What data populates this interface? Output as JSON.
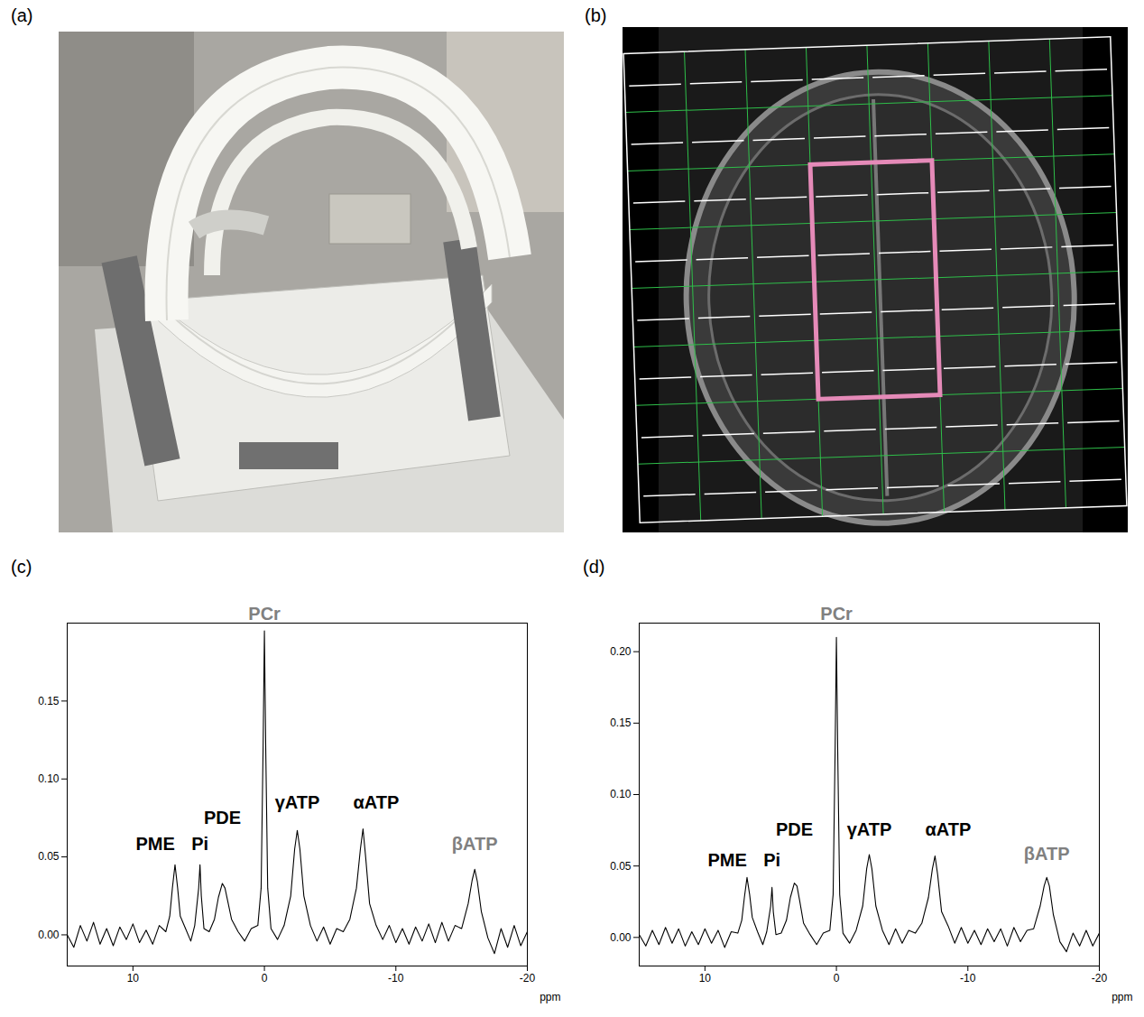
{
  "panels": [
    {
      "panel_label": "(a)",
      "type": "photo"
    },
    {
      "panel_label": "(b)",
      "type": "mrsi_grid",
      "grid": {
        "rows": 8,
        "cols": 8,
        "color": "#2fbf4a"
      },
      "highlight": {
        "first_row": 3,
        "last_row": 6,
        "first_col": 4,
        "last_col": 5,
        "color": "#e58ab8"
      }
    }
  ],
  "chart_data": [
    {
      "type": "line",
      "panel_label": "(c)",
      "x_label": "ppm",
      "color": "#000000",
      "xlim": [
        15,
        -20
      ],
      "xticks": [
        10,
        0,
        -10,
        -20
      ],
      "ylim": [
        -0.02,
        0.2
      ],
      "yticks": [
        {
          "value": 0,
          "label": "0.00"
        },
        {
          "value": 0.05,
          "label": "0.05"
        },
        {
          "value": 0.1,
          "label": "0.10"
        },
        {
          "value": 0.15,
          "label": "0.15"
        }
      ],
      "x": [
        15,
        14.5,
        14,
        13.5,
        13,
        12.5,
        12,
        11.5,
        11,
        10.5,
        10,
        9.5,
        9,
        8.5,
        8,
        7.5,
        7.2,
        7.0,
        6.8,
        6.6,
        6.4,
        6.0,
        5.6,
        5.3,
        5.0,
        4.9,
        4.8,
        4.6,
        4.2,
        3.8,
        3.5,
        3.2,
        3.0,
        2.8,
        2.5,
        2.0,
        1.5,
        1.0,
        0.5,
        0.25,
        0.1,
        0,
        -0.1,
        -0.25,
        -0.5,
        -1.0,
        -1.5,
        -2.0,
        -2.3,
        -2.5,
        -2.7,
        -3.0,
        -3.5,
        -4.0,
        -4.5,
        -5.0,
        -5.5,
        -6.0,
        -6.5,
        -7.0,
        -7.3,
        -7.5,
        -7.7,
        -8.0,
        -8.5,
        -9.0,
        -9.5,
        -10,
        -10.5,
        -11,
        -11.5,
        -12,
        -12.5,
        -13,
        -13.5,
        -14,
        -14.5,
        -15,
        -15.5,
        -15.8,
        -16,
        -16.2,
        -16.5,
        -17,
        -17.5,
        -18,
        -18.5,
        -19,
        -19.5,
        -20
      ],
      "values": [
        0.0,
        -0.008,
        0.006,
        -0.004,
        0.008,
        -0.006,
        0.004,
        -0.007,
        0.005,
        -0.003,
        0.007,
        -0.005,
        0.003,
        -0.006,
        0.006,
        0.002,
        0.012,
        0.03,
        0.045,
        0.03,
        0.012,
        0.004,
        -0.004,
        0.006,
        0.03,
        0.045,
        0.025,
        0.004,
        0.002,
        0.01,
        0.024,
        0.033,
        0.03,
        0.022,
        0.01,
        0.002,
        -0.004,
        0.004,
        0.006,
        0.03,
        0.12,
        0.195,
        0.12,
        0.03,
        0.004,
        -0.003,
        0.006,
        0.025,
        0.055,
        0.067,
        0.055,
        0.025,
        0.006,
        -0.004,
        0.005,
        -0.006,
        0.004,
        0.002,
        0.01,
        0.03,
        0.055,
        0.068,
        0.05,
        0.02,
        0.006,
        -0.003,
        0.006,
        -0.005,
        0.004,
        -0.006,
        0.005,
        -0.004,
        0.007,
        -0.005,
        0.008,
        -0.004,
        0.006,
        0.004,
        0.02,
        0.035,
        0.042,
        0.034,
        0.015,
        -0.002,
        -0.012,
        0.004,
        -0.008,
        0.006,
        -0.007,
        0.002
      ],
      "annotations": [
        {
          "text": "PME",
          "x": 8.3,
          "y": 0.058,
          "color": "#000000"
        },
        {
          "text": "Pi",
          "x": 4.9,
          "y": 0.058,
          "color": "#000000"
        },
        {
          "text": "PDE",
          "x": 3.2,
          "y": 0.075,
          "color": "#000000"
        },
        {
          "text": "PCr",
          "x": 0,
          "y": 0.206,
          "color": "#808080"
        },
        {
          "text": "γATP",
          "x": -2.5,
          "y": 0.085,
          "color": "#000000"
        },
        {
          "text": "αATP",
          "x": -8.5,
          "y": 0.085,
          "color": "#000000"
        },
        {
          "text": "βATP",
          "x": -16,
          "y": 0.058,
          "color": "#808080"
        }
      ]
    },
    {
      "type": "line",
      "panel_label": "(d)",
      "x_label": "ppm",
      "color": "#000000",
      "xlim": [
        15,
        -20
      ],
      "xticks": [
        10,
        0,
        -10,
        -20
      ],
      "ylim": [
        -0.02,
        0.22
      ],
      "yticks": [
        {
          "value": 0,
          "label": "0.00"
        },
        {
          "value": 0.05,
          "label": "0.05"
        },
        {
          "value": 0.1,
          "label": "0.10"
        },
        {
          "value": 0.15,
          "label": "0.15"
        },
        {
          "value": 0.2,
          "label": "0.20"
        }
      ],
      "x": [
        15,
        14.5,
        14,
        13.5,
        13,
        12.5,
        12,
        11.5,
        11,
        10.5,
        10,
        9.5,
        9,
        8.5,
        8,
        7.5,
        7.2,
        7.0,
        6.8,
        6.6,
        6.4,
        6.0,
        5.6,
        5.3,
        5.0,
        4.9,
        4.8,
        4.6,
        4.2,
        3.8,
        3.5,
        3.2,
        3.0,
        2.8,
        2.5,
        2.0,
        1.5,
        1.0,
        0.5,
        0.25,
        0.1,
        0,
        -0.1,
        -0.25,
        -0.5,
        -1.0,
        -1.5,
        -2.0,
        -2.3,
        -2.5,
        -2.7,
        -3.0,
        -3.5,
        -4.0,
        -4.5,
        -5.0,
        -5.5,
        -6.0,
        -6.5,
        -7.0,
        -7.3,
        -7.5,
        -7.7,
        -8.0,
        -8.5,
        -9.0,
        -9.5,
        -10,
        -10.5,
        -11,
        -11.5,
        -12,
        -12.5,
        -13,
        -13.5,
        -14,
        -14.5,
        -15,
        -15.5,
        -15.8,
        -16,
        -16.2,
        -16.5,
        -17,
        -17.5,
        -18,
        -18.5,
        -19,
        -19.5,
        -20
      ],
      "values": [
        0.002,
        -0.006,
        0.005,
        -0.005,
        0.007,
        -0.004,
        0.006,
        -0.006,
        0.004,
        -0.005,
        0.006,
        -0.004,
        0.005,
        -0.007,
        0.004,
        0.003,
        0.012,
        0.028,
        0.042,
        0.03,
        0.014,
        0.004,
        -0.005,
        0.004,
        0.022,
        0.035,
        0.018,
        0.002,
        0.003,
        0.012,
        0.028,
        0.038,
        0.036,
        0.026,
        0.01,
        0.002,
        -0.005,
        0.003,
        0.005,
        0.03,
        0.13,
        0.21,
        0.13,
        0.03,
        0.003,
        -0.004,
        0.005,
        0.022,
        0.048,
        0.058,
        0.048,
        0.022,
        0.005,
        -0.005,
        0.006,
        -0.004,
        0.005,
        0.003,
        0.01,
        0.028,
        0.048,
        0.057,
        0.044,
        0.018,
        0.008,
        -0.004,
        0.007,
        -0.004,
        0.005,
        -0.005,
        0.006,
        -0.003,
        0.006,
        -0.006,
        0.007,
        -0.003,
        0.005,
        0.006,
        0.022,
        0.036,
        0.042,
        0.036,
        0.016,
        -0.003,
        -0.01,
        0.003,
        -0.006,
        0.005,
        -0.006,
        0.003
      ],
      "annotations": [
        {
          "text": "PME",
          "x": 8.3,
          "y": 0.054,
          "color": "#000000"
        },
        {
          "text": "Pi",
          "x": 4.9,
          "y": 0.054,
          "color": "#000000"
        },
        {
          "text": "PDE",
          "x": 3.2,
          "y": 0.075,
          "color": "#000000"
        },
        {
          "text": "PCr",
          "x": 0,
          "y": 0.226,
          "color": "#808080"
        },
        {
          "text": "γATP",
          "x": -2.5,
          "y": 0.075,
          "color": "#000000"
        },
        {
          "text": "αATP",
          "x": -8.5,
          "y": 0.075,
          "color": "#000000"
        },
        {
          "text": "βATP",
          "x": -16,
          "y": 0.058,
          "color": "#808080"
        }
      ]
    }
  ]
}
